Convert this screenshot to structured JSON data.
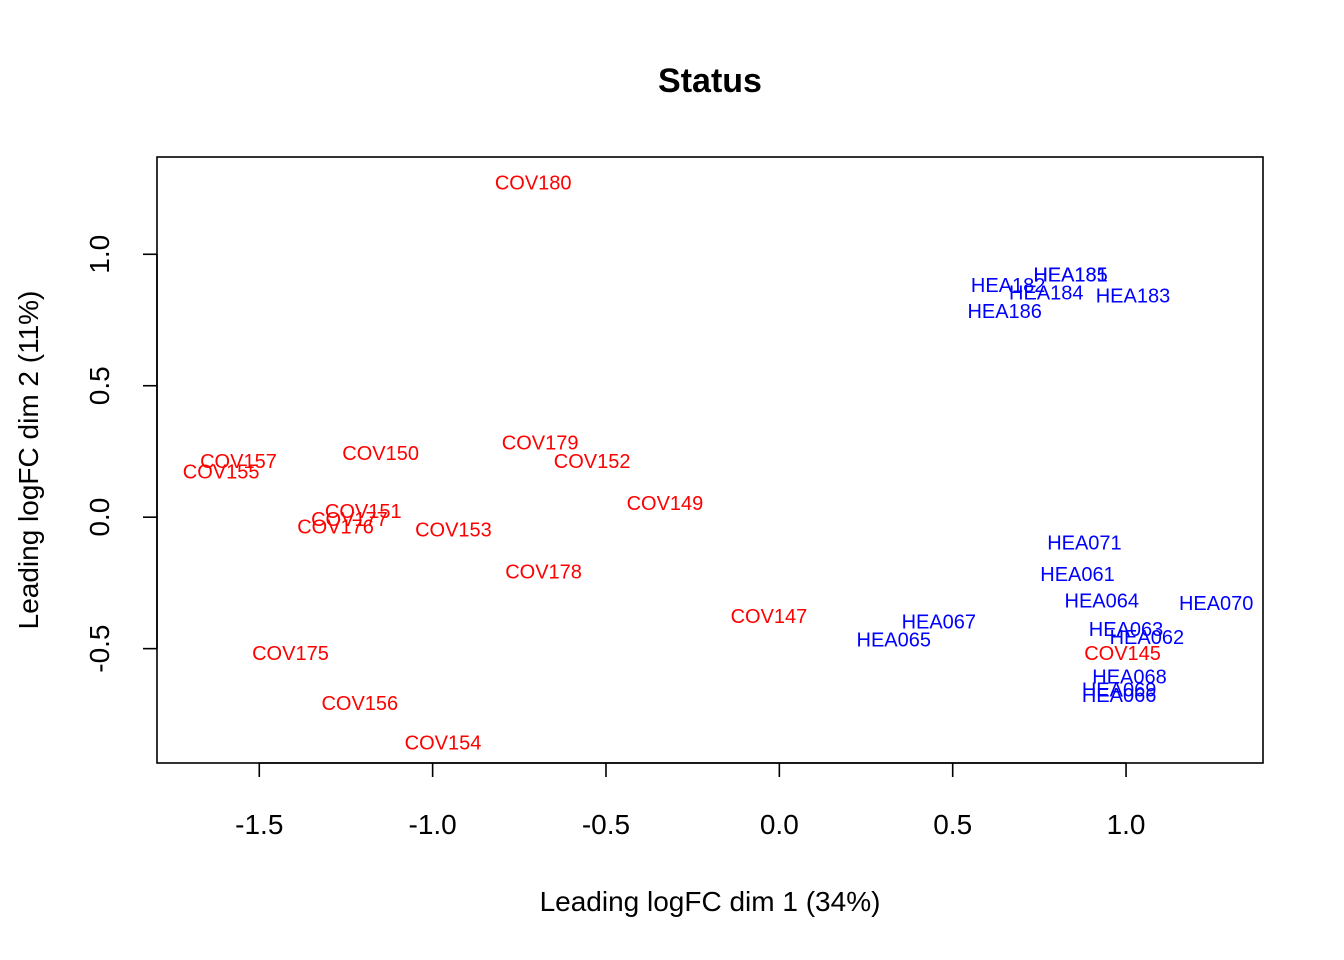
{
  "chart_data": {
    "type": "scatter",
    "title": "Status",
    "xlabel": "Leading logFC dim 1 (34%)",
    "ylabel": "Leading logFC dim 2 (11%)",
    "xlim": [
      -1.795,
      1.395
    ],
    "ylim": [
      -0.935,
      1.37
    ],
    "xticks": [
      -1.5,
      -1.0,
      -0.5,
      0.0,
      0.5,
      1.0
    ],
    "xtick_labels": [
      "-1.5",
      "-1.0",
      "-0.5",
      "0.0",
      "0.5",
      "1.0"
    ],
    "yticks": [
      -0.5,
      0.0,
      0.5,
      1.0
    ],
    "ytick_labels": [
      "-0.5",
      "0.0",
      "0.5",
      "1.0"
    ],
    "grid": false,
    "colors": {
      "COV": "#ff0000",
      "HEA": "#0000ff"
    },
    "points": [
      {
        "label": "COV180",
        "x": -0.71,
        "y": 1.27,
        "group": "COV"
      },
      {
        "label": "COV157",
        "x": -1.56,
        "y": 0.21,
        "group": "COV"
      },
      {
        "label": "COV155",
        "x": -1.61,
        "y": 0.17,
        "group": "COV"
      },
      {
        "label": "COV150",
        "x": -1.15,
        "y": 0.24,
        "group": "COV"
      },
      {
        "label": "COV179",
        "x": -0.69,
        "y": 0.28,
        "group": "COV"
      },
      {
        "label": "COV152",
        "x": -0.54,
        "y": 0.21,
        "group": "COV"
      },
      {
        "label": "COV149",
        "x": -0.33,
        "y": 0.05,
        "group": "COV"
      },
      {
        "label": "COV151",
        "x": -1.2,
        "y": 0.02,
        "group": "COV"
      },
      {
        "label": "COV177",
        "x": -1.24,
        "y": -0.01,
        "group": "COV"
      },
      {
        "label": "COV176",
        "x": -1.28,
        "y": -0.04,
        "group": "COV"
      },
      {
        "label": "COV153",
        "x": -0.94,
        "y": -0.05,
        "group": "COV"
      },
      {
        "label": "COV178",
        "x": -0.68,
        "y": -0.21,
        "group": "COV"
      },
      {
        "label": "COV147",
        "x": -0.03,
        "y": -0.38,
        "group": "COV"
      },
      {
        "label": "COV175",
        "x": -1.41,
        "y": -0.52,
        "group": "COV"
      },
      {
        "label": "COV156",
        "x": -1.21,
        "y": -0.71,
        "group": "COV"
      },
      {
        "label": "COV154",
        "x": -0.97,
        "y": -0.86,
        "group": "COV"
      },
      {
        "label": "COV145",
        "x": 0.99,
        "y": -0.52,
        "group": "COV"
      },
      {
        "label": "HEA185",
        "x": 0.84,
        "y": 0.92,
        "group": "HEA"
      },
      {
        "label": "HEA181",
        "x": 0.84,
        "y": 0.92,
        "group": "HEA"
      },
      {
        "label": "HEA182",
        "x": 0.66,
        "y": 0.88,
        "group": "HEA"
      },
      {
        "label": "HEA184",
        "x": 0.77,
        "y": 0.85,
        "group": "HEA"
      },
      {
        "label": "HEA183",
        "x": 1.02,
        "y": 0.84,
        "group": "HEA"
      },
      {
        "label": "HEA186",
        "x": 0.65,
        "y": 0.78,
        "group": "HEA"
      },
      {
        "label": "HEA071",
        "x": 0.88,
        "y": -0.1,
        "group": "HEA"
      },
      {
        "label": "HEA061",
        "x": 0.86,
        "y": -0.22,
        "group": "HEA"
      },
      {
        "label": "HEA064",
        "x": 0.93,
        "y": -0.32,
        "group": "HEA"
      },
      {
        "label": "HEA070",
        "x": 1.26,
        "y": -0.33,
        "group": "HEA"
      },
      {
        "label": "HEA067",
        "x": 0.46,
        "y": -0.4,
        "group": "HEA"
      },
      {
        "label": "HEA065",
        "x": 0.33,
        "y": -0.47,
        "group": "HEA"
      },
      {
        "label": "HEA063",
        "x": 1.0,
        "y": -0.43,
        "group": "HEA"
      },
      {
        "label": "HEA062",
        "x": 1.06,
        "y": -0.46,
        "group": "HEA"
      },
      {
        "label": "HEA068",
        "x": 1.01,
        "y": -0.61,
        "group": "HEA"
      },
      {
        "label": "HEA069",
        "x": 0.98,
        "y": -0.66,
        "group": "HEA"
      },
      {
        "label": "HEA066",
        "x": 0.98,
        "y": -0.68,
        "group": "HEA"
      }
    ]
  }
}
